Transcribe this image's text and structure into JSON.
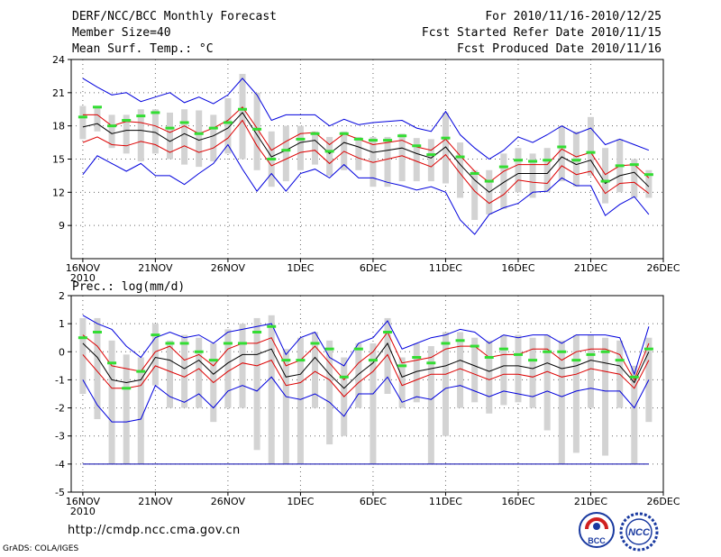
{
  "header": {
    "title": "DERF/NCC/BCC Monthly Forecast",
    "member_size": "Member Size=40",
    "variable": "Mean Surf. Temp.: °C",
    "period": "For 2010/11/16-2010/12/25",
    "fcst_started": "Fcst Started Refer Date 2010/11/15",
    "fcst_produced": "Fcst Produced Date 2010/11/16"
  },
  "footer": {
    "url": "http://cmdp.ncc.cma.gov.cn",
    "credit": "GrADS: COLA/IGES",
    "logo1_text": "BCC",
    "logo2_text": "NCC"
  },
  "colors": {
    "envelope": "#0000dd",
    "spread": "#dd0000",
    "mean": "#000000",
    "box": "#d3d3d3",
    "obs": "#33dd33",
    "floor": "#0000aa"
  },
  "chart_data": [
    {
      "type": "line",
      "title": "Mean Surf. Temp.: °C",
      "x_start_label": "16NOV",
      "x_year": "2010",
      "xtick_labels": [
        "16NOV",
        "21NOV",
        "26NOV",
        "1DEC",
        "6DEC",
        "11DEC",
        "16DEC",
        "21DEC",
        "26DEC"
      ],
      "xtick_days": [
        0,
        5,
        10,
        15,
        20,
        25,
        30,
        35,
        40
      ],
      "xlim": [
        -0.8,
        40
      ],
      "ylim": [
        6,
        24
      ],
      "yticks": [
        9,
        12,
        15,
        18,
        21,
        24
      ],
      "ytick_labels": [
        "9",
        "12",
        "15",
        "18",
        "21",
        "24"
      ],
      "grid": true,
      "series": [
        {
          "name": "ensemble max",
          "values": [
            22.3,
            21.5,
            20.8,
            21.0,
            20.2,
            20.6,
            21.0,
            20.1,
            20.6,
            20.0,
            20.8,
            22.3,
            20.8,
            18.5,
            19.0,
            19.0,
            19.0,
            18.0,
            18.6,
            18.1,
            18.3,
            18.4,
            18.5,
            17.8,
            17.5,
            19.3,
            17.2,
            16.0,
            15.0,
            15.8,
            17.0,
            16.5,
            17.2,
            18.0,
            17.3,
            17.8,
            16.3,
            16.8,
            16.3,
            15.8
          ]
        },
        {
          "name": "upper spread",
          "values": [
            19.0,
            19.0,
            18.0,
            18.4,
            18.3,
            18.0,
            17.4,
            18.0,
            17.3,
            17.8,
            18.5,
            19.7,
            17.8,
            15.8,
            16.6,
            17.3,
            17.4,
            16.3,
            17.3,
            16.8,
            16.3,
            16.5,
            16.7,
            16.1,
            15.8,
            16.8,
            15.3,
            13.9,
            12.9,
            13.9,
            14.5,
            14.5,
            14.5,
            15.9,
            15.2,
            15.6,
            13.6,
            14.4,
            14.5,
            13.3
          ]
        },
        {
          "name": "ensemble mean",
          "values": [
            17.9,
            18.2,
            17.3,
            17.6,
            17.6,
            17.4,
            16.6,
            17.3,
            16.7,
            17.1,
            17.8,
            19.2,
            17.2,
            15.2,
            15.8,
            16.5,
            16.7,
            15.5,
            16.5,
            16.1,
            15.6,
            15.8,
            16.0,
            15.5,
            15.1,
            16.1,
            14.5,
            13.1,
            12.0,
            12.9,
            13.7,
            13.7,
            13.7,
            15.2,
            14.5,
            14.9,
            12.8,
            13.5,
            13.8,
            12.5
          ]
        },
        {
          "name": "lower spread",
          "values": [
            16.5,
            17.0,
            16.3,
            16.2,
            16.6,
            16.3,
            15.6,
            16.2,
            15.6,
            16.0,
            16.9,
            18.5,
            16.2,
            14.4,
            15.0,
            15.6,
            15.8,
            14.6,
            15.7,
            15.1,
            14.7,
            15.0,
            15.3,
            14.8,
            14.3,
            15.4,
            13.7,
            12.1,
            11.0,
            11.8,
            13.1,
            12.9,
            12.8,
            14.4,
            13.6,
            13.9,
            11.9,
            12.8,
            12.9,
            11.9
          ]
        },
        {
          "name": "ensemble min",
          "values": [
            13.6,
            15.3,
            14.6,
            13.9,
            14.6,
            13.5,
            13.5,
            12.7,
            13.7,
            14.6,
            16.3,
            14.1,
            12.1,
            13.7,
            12.1,
            13.7,
            14.1,
            13.3,
            14.5,
            13.3,
            13.3,
            12.9,
            12.6,
            12.2,
            12.5,
            12.0,
            9.5,
            8.2,
            10.0,
            10.6,
            11.0,
            12.0,
            12.1,
            13.3,
            12.6,
            12.6,
            9.9,
            10.9,
            11.6,
            10.0
          ]
        },
        {
          "name": "box top",
          "values": [
            19.8,
            19.7,
            19.0,
            19.0,
            19.5,
            19.5,
            19.2,
            19.5,
            19.4,
            19.0,
            20.5,
            22.7,
            21.0,
            17.5,
            18.0,
            18.0,
            17.5,
            17.0,
            17.5,
            17.0,
            17.0,
            17.0,
            17.3,
            16.9,
            16.8,
            19.2,
            16.5,
            14.0,
            14.0,
            15.5,
            16.0,
            15.5,
            16.0,
            18.0,
            17.5,
            18.8,
            16.0,
            16.8,
            15.0,
            14.0
          ]
        },
        {
          "name": "box bottom",
          "values": [
            16.8,
            17.5,
            16.0,
            15.5,
            14.8,
            15.5,
            15.0,
            14.5,
            14.3,
            14.8,
            15.5,
            15.0,
            14.0,
            12.5,
            13.0,
            14.0,
            14.5,
            13.5,
            14.0,
            14.0,
            12.5,
            12.5,
            13.0,
            13.0,
            13.0,
            12.8,
            11.5,
            9.5,
            10.0,
            10.5,
            12.0,
            11.5,
            12.0,
            13.0,
            12.5,
            13.5,
            11.0,
            12.0,
            11.5,
            11.5
          ]
        },
        {
          "name": "observed",
          "values": [
            18.8,
            19.7,
            18.0,
            18.5,
            18.9,
            19.2,
            17.8,
            18.3,
            17.3,
            17.8,
            18.3,
            19.5,
            17.7,
            15.0,
            15.8,
            16.8,
            17.3,
            15.7,
            17.3,
            16.8,
            16.7,
            16.7,
            17.1,
            16.2,
            15.4,
            16.9,
            15.2,
            13.7,
            13.0,
            14.3,
            14.9,
            14.8,
            14.9,
            16.1,
            14.9,
            15.6,
            13.0,
            14.4,
            14.5,
            13.6
          ]
        }
      ]
    },
    {
      "type": "line",
      "title": "Prec.: log(mm/d)",
      "x_start_label": "16NOV",
      "x_year": "2010",
      "xtick_labels": [
        "16NOV",
        "21NOV",
        "26NOV",
        "1DEC",
        "6DEC",
        "11DEC",
        "16DEC",
        "21DEC",
        "26DEC"
      ],
      "xtick_days": [
        0,
        5,
        10,
        15,
        20,
        25,
        30,
        35,
        40
      ],
      "xlim": [
        -0.8,
        40
      ],
      "ylim": [
        -5,
        2
      ],
      "yticks": [
        -5,
        -4,
        -3,
        -2,
        -1,
        0,
        1,
        2
      ],
      "ytick_labels": [
        "-5",
        "-4",
        "-3",
        "-2",
        "-1",
        "0",
        "1",
        "2"
      ],
      "grid": true,
      "floor_value": -4,
      "series": [
        {
          "name": "ensemble max",
          "values": [
            1.3,
            1.0,
            0.8,
            0.2,
            -0.2,
            0.5,
            0.7,
            0.5,
            0.6,
            0.3,
            0.7,
            0.8,
            0.9,
            1.0,
            -0.1,
            0.5,
            0.7,
            -0.2,
            -0.5,
            0.3,
            0.5,
            1.1,
            0.1,
            0.3,
            0.5,
            0.6,
            0.8,
            0.7,
            0.3,
            0.6,
            0.5,
            0.6,
            0.6,
            0.3,
            0.6,
            0.6,
            0.6,
            0.5,
            -0.8,
            0.9
          ]
        },
        {
          "name": "upper spread",
          "values": [
            0.6,
            0.2,
            -0.5,
            -0.6,
            -0.7,
            0.0,
            0.2,
            -0.3,
            -0.1,
            -0.5,
            0.1,
            0.3,
            0.3,
            0.5,
            -0.5,
            -0.3,
            0.2,
            -0.4,
            -1.0,
            -0.4,
            0.0,
            0.7,
            -0.4,
            -0.3,
            -0.2,
            0.1,
            0.2,
            0.2,
            -0.2,
            -0.1,
            -0.1,
            0.1,
            0.1,
            -0.3,
            0.0,
            0.1,
            0.1,
            -0.1,
            -1.0,
            0.3
          ]
        },
        {
          "name": "ensemble mean",
          "values": [
            0.3,
            -0.2,
            -1.0,
            -1.1,
            -1.0,
            -0.2,
            -0.3,
            -0.6,
            -0.3,
            -0.8,
            -0.4,
            -0.1,
            -0.1,
            0.1,
            -0.9,
            -0.8,
            -0.2,
            -0.8,
            -1.3,
            -0.8,
            -0.4,
            0.3,
            -0.9,
            -0.7,
            -0.6,
            -0.5,
            -0.3,
            -0.5,
            -0.7,
            -0.5,
            -0.5,
            -0.6,
            -0.4,
            -0.6,
            -0.5,
            -0.3,
            -0.4,
            -0.5,
            -1.1,
            0.0
          ]
        },
        {
          "name": "lower spread",
          "values": [
            -0.1,
            -0.7,
            -1.3,
            -1.3,
            -1.2,
            -0.5,
            -0.7,
            -0.9,
            -0.6,
            -1.1,
            -0.7,
            -0.4,
            -0.5,
            -0.3,
            -1.2,
            -1.1,
            -0.7,
            -1.0,
            -1.6,
            -1.1,
            -0.7,
            -0.1,
            -1.2,
            -1.0,
            -0.8,
            -0.8,
            -0.6,
            -0.8,
            -1.0,
            -0.8,
            -0.8,
            -0.9,
            -0.7,
            -0.9,
            -0.8,
            -0.6,
            -0.7,
            -0.8,
            -1.3,
            -0.3
          ]
        },
        {
          "name": "ensemble min",
          "values": [
            -1.0,
            -1.9,
            -2.5,
            -2.5,
            -2.4,
            -1.2,
            -1.6,
            -1.8,
            -1.5,
            -2.0,
            -1.4,
            -1.2,
            -1.4,
            -0.9,
            -1.6,
            -1.7,
            -1.5,
            -1.8,
            -2.3,
            -1.5,
            -1.5,
            -0.9,
            -1.8,
            -1.6,
            -1.7,
            -1.3,
            -1.2,
            -1.4,
            -1.6,
            -1.4,
            -1.5,
            -1.6,
            -1.4,
            -1.6,
            -1.4,
            -1.3,
            -1.4,
            -1.4,
            -2.0,
            -1.0
          ]
        },
        {
          "name": "box top",
          "values": [
            1.2,
            1.2,
            0.4,
            -0.1,
            -0.2,
            1.0,
            0.4,
            0.6,
            0.5,
            0.3,
            0.8,
            1.0,
            1.2,
            1.3,
            0.1,
            0.5,
            0.7,
            0.4,
            -0.2,
            0.3,
            0.3,
            1.2,
            -0.2,
            0.3,
            0.2,
            0.7,
            0.7,
            0.5,
            0.4,
            0.6,
            0.6,
            0.5,
            0.6,
            0.4,
            0.6,
            0.6,
            0.5,
            0.4,
            -0.5,
            0.5
          ]
        },
        {
          "name": "box bottom",
          "values": [
            -1.5,
            -2.4,
            -4.0,
            -4.0,
            -4.0,
            -1.2,
            -2.0,
            -2.0,
            -2.0,
            -2.5,
            -2.0,
            -2.0,
            -3.5,
            -4.0,
            -4.0,
            -4.0,
            -2.0,
            -3.3,
            -3.0,
            -2.0,
            -4.0,
            -1.5,
            -2.0,
            -1.8,
            -4.0,
            -3.0,
            -2.0,
            -1.8,
            -2.2,
            -1.9,
            -1.8,
            -2.0,
            -2.8,
            -4.0,
            -3.6,
            -2.0,
            -3.7,
            -2.0,
            -4.0,
            -2.5
          ]
        },
        {
          "name": "observed",
          "values": [
            0.5,
            0.7,
            -0.4,
            -1.3,
            -0.7,
            0.6,
            0.3,
            0.3,
            0.0,
            -0.3,
            0.3,
            0.3,
            0.7,
            0.9,
            -0.3,
            -0.3,
            0.3,
            0.1,
            -0.9,
            0.1,
            -0.3,
            0.7,
            -0.5,
            -0.2,
            -0.4,
            0.3,
            0.4,
            0.2,
            -0.2,
            0.1,
            -0.1,
            -0.3,
            0.0,
            0.0,
            -0.3,
            -0.1,
            0.0,
            -0.3,
            -0.9,
            0.1
          ]
        }
      ]
    }
  ]
}
